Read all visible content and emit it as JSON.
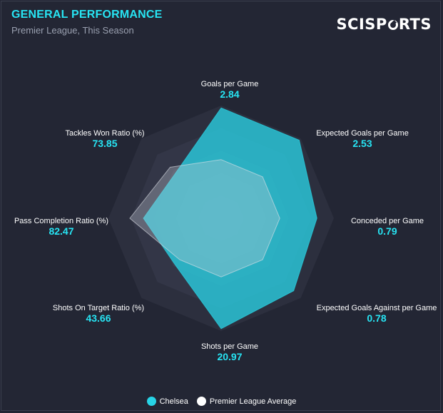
{
  "header": {
    "title": "GENERAL PERFORMANCE",
    "subtitle": "Premier League, This Season",
    "brand": "SCISPORTS"
  },
  "chart_data": {
    "type": "radar",
    "axes": [
      {
        "label": "Goals per Game",
        "value": "2.84"
      },
      {
        "label": "Expected Goals per Game",
        "value": "2.53"
      },
      {
        "label": "Conceded per Game",
        "value": "0.79"
      },
      {
        "label": "Expected Goals Against per Game",
        "value": "0.78"
      },
      {
        "label": "Shots per Game",
        "value": "20.97"
      },
      {
        "label": "Shots On Target Ratio (%)",
        "value": "43.66"
      },
      {
        "label": "Pass Completion Ratio (%)",
        "value": "82.47"
      },
      {
        "label": "Tackles Won Ratio (%)",
        "value": "73.85"
      }
    ],
    "series": [
      {
        "name": "Chelsea",
        "color": "#27d3e6",
        "normalized": [
          0.98,
          0.98,
          0.85,
          0.91,
          0.98,
          0.58,
          0.69,
          0.57
        ]
      },
      {
        "name": "Premier League Average",
        "color": "#ffffff",
        "normalized": [
          0.52,
          0.52,
          0.52,
          0.52,
          0.52,
          0.52,
          0.81,
          0.64
        ]
      }
    ],
    "rings": 5,
    "legend": "bottom-center"
  },
  "legend": {
    "items": [
      {
        "label": "Chelsea",
        "color": "#27d3e6"
      },
      {
        "label": "Premier League Average",
        "color": "#ffffff"
      }
    ]
  }
}
